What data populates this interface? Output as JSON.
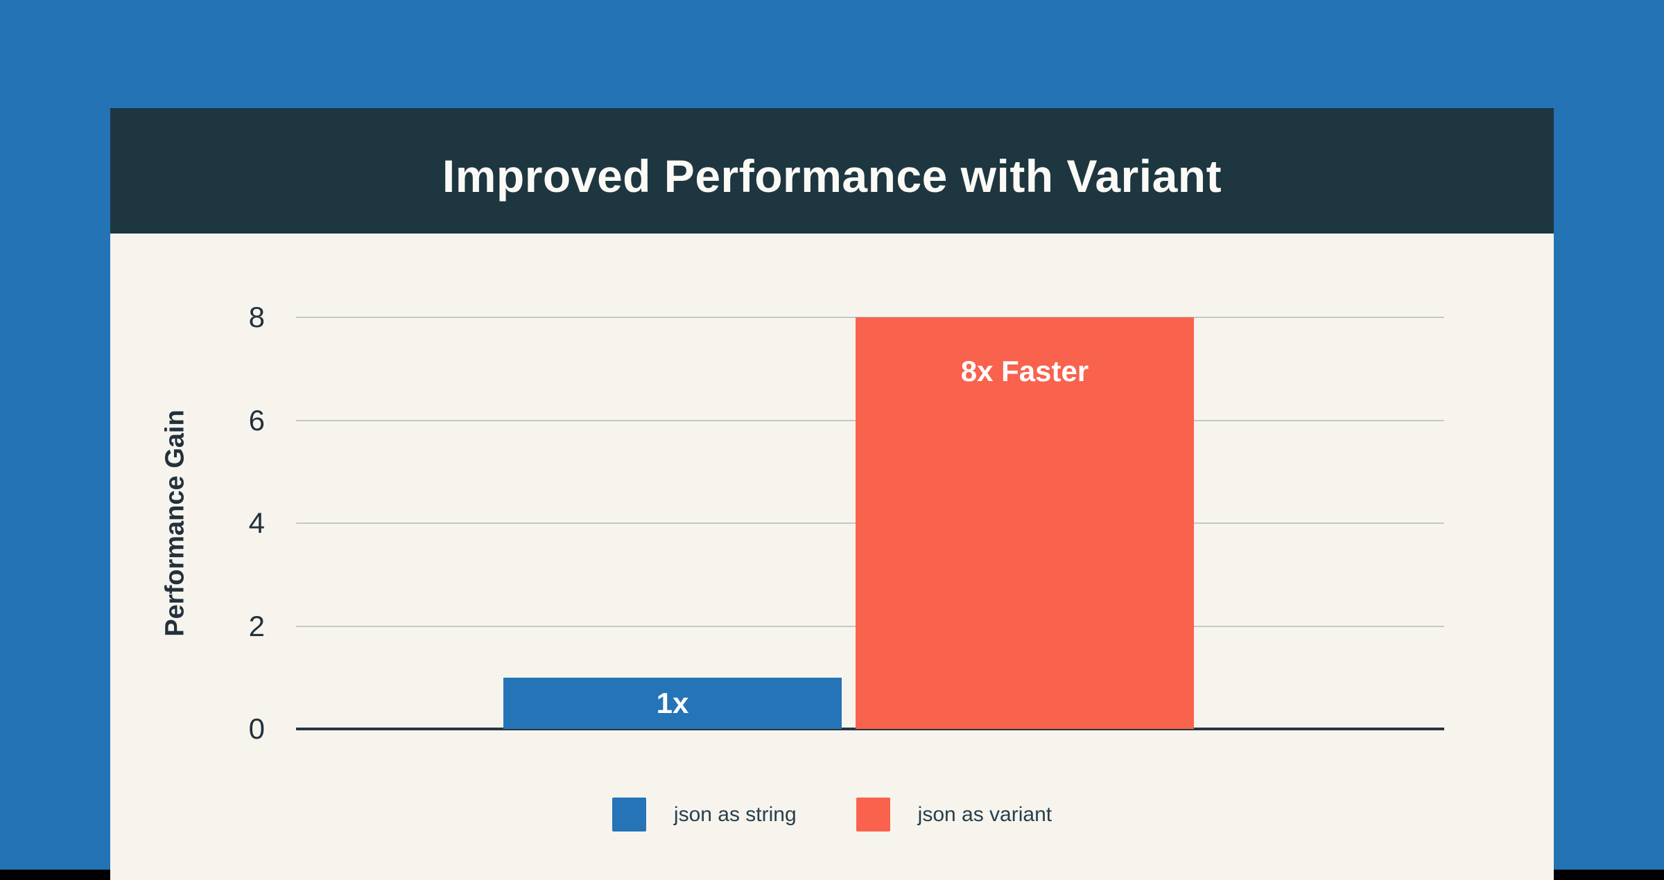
{
  "title": "Improved Performance with Variant",
  "colors": {
    "page_bg": "#2473b4",
    "bottom_bar": "#000000",
    "header_bg": "#1e3640",
    "card_bg": "#f7f4ee",
    "title_text": "#fbfaf6",
    "gridline": "#c5c7c4",
    "axis_line": "#263540",
    "axis_text": "#22313c",
    "legend_text": "#27404c",
    "bar_label_text": "#ffffff",
    "bar_blue": "#2574b7",
    "bar_orange": "#f9624d"
  },
  "chart_data": {
    "type": "bar",
    "title": "Improved Performance with Variant",
    "categories": [
      "json as string",
      "json as variant"
    ],
    "values": [
      1,
      8
    ],
    "bar_labels": [
      "1x",
      "8x Faster"
    ],
    "bar_colors": [
      "#2574b7",
      "#f9624d"
    ],
    "xlabel": "",
    "ylabel": "Performance Gain",
    "ylim": [
      0,
      8
    ],
    "yticks": [
      0,
      2,
      4,
      6,
      8
    ],
    "grid": true,
    "legend_position": "bottom",
    "legend": [
      {
        "label": "json as string",
        "color": "#2574b7"
      },
      {
        "label": "json as variant",
        "color": "#f9624d"
      }
    ]
  }
}
